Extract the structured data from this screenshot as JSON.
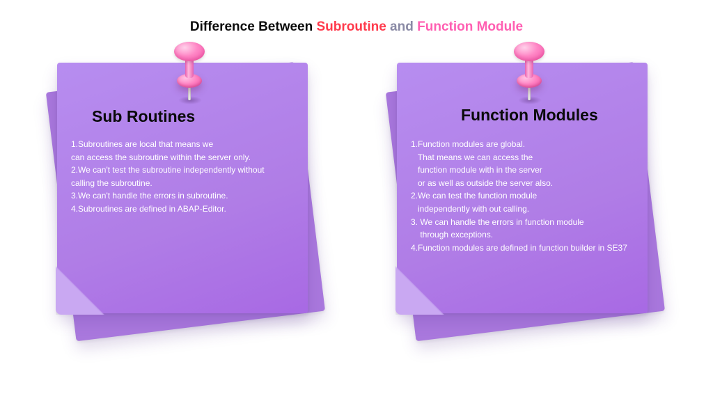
{
  "title": {
    "part1": "Difference Between ",
    "part2": "Subroutine",
    "part3": "  and  ",
    "part4": "Function Module"
  },
  "colors": {
    "title_black": "#0a0a0a",
    "title_red": "#ff3a4c",
    "title_grey": "#8a8aa5",
    "title_pink": "#ff5fb2",
    "note_bg": "#b07de6",
    "note_bg_light": "#b78df0",
    "note_text": "#ffffff",
    "pin": "#ff87c6"
  },
  "left_note": {
    "heading": "Sub Routines",
    "lines": [
      "1.Subroutines are local that means we",
      "can access the subroutine within the server only.",
      "2.We can't test the subroutine independently without",
      "calling the subroutine.",
      "3.We can't handle the errors in subroutine.",
      "4.Subroutines are defined in ABAP-Editor."
    ]
  },
  "right_note": {
    "heading": "Function Modules",
    "lines": [
      "1.Function modules are global.",
      "   That means we can access the",
      "   function module with in the server",
      "   or as well as outside the server also.",
      "2.We can test the function module",
      "   independently with out calling.",
      "3. We can handle the errors in function module",
      "    through exceptions.",
      "4.Function modules are defined in function builder in SE37"
    ]
  }
}
